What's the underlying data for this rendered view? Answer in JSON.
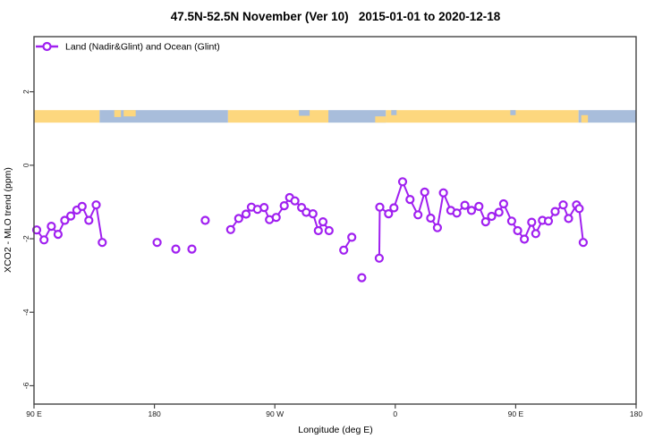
{
  "chart_data": {
    "type": "line",
    "title": "47.5N-52.5N November (Ver 10)   2015-01-01 to 2020-12-18",
    "xlabel": "Longitude (deg E)",
    "ylabel": "XCO2 - MLO trend (ppm)",
    "xlim": [
      90,
      540
    ],
    "ylim": [
      -6.5,
      3.5
    ],
    "grid": false,
    "legend_position": "top-left-inside",
    "x_ticks": [
      {
        "value": 90,
        "label": "90 E"
      },
      {
        "value": 180,
        "label": "180"
      },
      {
        "value": 270,
        "label": "90 W"
      },
      {
        "value": 360,
        "label": "0"
      },
      {
        "value": 450,
        "label": "90 E"
      },
      {
        "value": 540,
        "label": "180"
      }
    ],
    "y_ticks": [
      {
        "value": 2,
        "label": "2"
      },
      {
        "value": 0,
        "label": "0"
      },
      {
        "value": -2,
        "label": "-2"
      },
      {
        "value": -4,
        "label": "-4"
      },
      {
        "value": -6,
        "label": "-6"
      }
    ],
    "series": [
      {
        "name": "Land (Nadir&Glint) and Ocean (Glint)",
        "color": "#A020F0",
        "marker": "open-circle",
        "line_width": 2,
        "segments": [
          [
            [
              92,
              -1.76
            ],
            [
              97.5,
              -2.03
            ],
            [
              103,
              -1.66
            ],
            [
              108,
              -1.88
            ],
            [
              113,
              -1.5
            ],
            [
              117.5,
              -1.38
            ],
            [
              122,
              -1.22
            ],
            [
              126,
              -1.12
            ],
            [
              131,
              -1.5
            ],
            [
              136.5,
              -1.08
            ],
            [
              141,
              -2.1
            ]
          ],
          [
            [
              182,
              -2.1
            ]
          ],
          [
            [
              196,
              -2.28
            ]
          ],
          [
            [
              208,
              -2.28
            ]
          ],
          [
            [
              218,
              -1.5
            ]
          ],
          [
            [
              237,
              -1.75
            ],
            [
              243,
              -1.45
            ],
            [
              248.5,
              -1.33
            ],
            [
              252.5,
              -1.14
            ],
            [
              257,
              -1.2
            ],
            [
              262,
              -1.15
            ],
            [
              266,
              -1.48
            ],
            [
              271,
              -1.42
            ],
            [
              277,
              -1.1
            ],
            [
              281,
              -0.88
            ],
            [
              285,
              -0.97
            ],
            [
              290,
              -1.15
            ],
            [
              293.5,
              -1.28
            ],
            [
              298.5,
              -1.32
            ],
            [
              302.5,
              -1.78
            ],
            [
              306,
              -1.54
            ],
            [
              310.5,
              -1.78
            ]
          ],
          [
            [
              321.5,
              -2.31
            ],
            [
              327.5,
              -1.96
            ]
          ],
          [
            [
              335,
              -3.06
            ]
          ],
          [
            [
              348,
              -2.53
            ],
            [
              348.4,
              -1.14
            ],
            [
              355,
              -1.32
            ],
            [
              359,
              -1.16
            ],
            [
              365.5,
              -0.45
            ],
            [
              371,
              -0.93
            ],
            [
              377,
              -1.35
            ],
            [
              382,
              -0.73
            ],
            [
              386.5,
              -1.44
            ],
            [
              391.5,
              -1.7
            ],
            [
              396,
              -0.75
            ],
            [
              401.5,
              -1.23
            ],
            [
              406,
              -1.3
            ],
            [
              412,
              -1.09
            ],
            [
              417,
              -1.23
            ],
            [
              422.5,
              -1.12
            ],
            [
              427.5,
              -1.54
            ],
            [
              432,
              -1.39
            ],
            [
              437.5,
              -1.28
            ],
            [
              441,
              -1.05
            ],
            [
              447,
              -1.52
            ],
            [
              451.5,
              -1.78
            ],
            [
              456.5,
              -2.01
            ],
            [
              462,
              -1.55
            ],
            [
              465,
              -1.86
            ],
            [
              470,
              -1.5
            ],
            [
              474.5,
              -1.52
            ],
            [
              479.5,
              -1.26
            ],
            [
              485.5,
              -1.08
            ],
            [
              489.5,
              -1.45
            ],
            [
              495.5,
              -1.08
            ],
            [
              497.5,
              -1.18
            ],
            [
              500.5,
              -2.1
            ]
          ]
        ]
      }
    ],
    "map_strip": {
      "kind": "land-ocean longitude band",
      "value_band": [
        1.16,
        1.5
      ],
      "land_color": "#FDD77E",
      "ocean_color": "#A8BDDB",
      "segments": [
        {
          "from": 90,
          "to": 139,
          "type": "land"
        },
        {
          "from": 139,
          "to": 235,
          "type": "ocean"
        },
        {
          "from": 235,
          "to": 310,
          "type": "land"
        },
        {
          "from": 310,
          "to": 353,
          "type": "ocean"
        },
        {
          "from": 353,
          "to": 497,
          "type": "land"
        },
        {
          "from": 497,
          "to": 540,
          "type": "ocean"
        }
      ],
      "patches": [
        {
          "from": 150,
          "to": 155,
          "type": "land",
          "anchor": "top",
          "frac": 0.55
        },
        {
          "from": 157,
          "to": 166,
          "type": "land",
          "anchor": "top",
          "frac": 0.5
        },
        {
          "from": 288,
          "to": 296,
          "type": "ocean",
          "anchor": "top",
          "frac": 0.45
        },
        {
          "from": 345,
          "to": 353,
          "type": "land",
          "anchor": "bottom",
          "frac": 0.5
        },
        {
          "from": 357,
          "to": 361,
          "type": "ocean",
          "anchor": "top",
          "frac": 0.4
        },
        {
          "from": 446,
          "to": 450,
          "type": "ocean",
          "anchor": "top",
          "frac": 0.4
        },
        {
          "from": 499,
          "to": 504,
          "type": "land",
          "anchor": "bottom",
          "frac": 0.6
        }
      ]
    }
  },
  "colors": {
    "background": "#FFFFFF",
    "axis": "#444444",
    "series": "#A020F0"
  }
}
